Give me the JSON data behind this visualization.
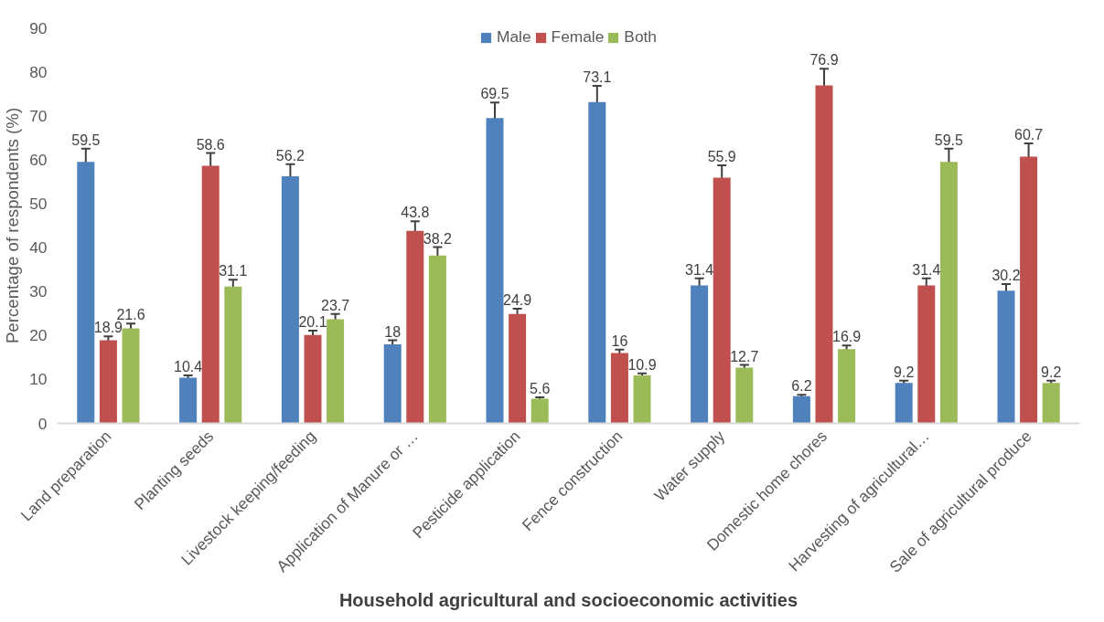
{
  "chart_data": {
    "type": "bar",
    "xlabel": "Household agricultural and socioeconomic activities",
    "ylabel": "Percentage of respondents (%)",
    "categories": [
      "Land preparation",
      "Planting seeds",
      "Livestock keeping/feeding",
      "Application of Manure or …",
      "Pesticide application",
      "Fence construction",
      "Water supply",
      "Domestic home chores",
      "Harvesting of agricultural…",
      "Sale of agricultural produce"
    ],
    "series": [
      {
        "name": "Male",
        "color": "#4f81bd",
        "values": [
          59.5,
          10.4,
          56.2,
          18,
          69.5,
          73.1,
          31.4,
          6.2,
          9.2,
          30.2
        ],
        "errors": [
          3.0,
          0.5,
          2.8,
          0.9,
          3.5,
          3.7,
          1.6,
          0.3,
          0.5,
          1.5
        ]
      },
      {
        "name": "Female",
        "color": "#c0504d",
        "values": [
          18.9,
          58.6,
          20.1,
          43.8,
          24.9,
          16,
          55.9,
          76.9,
          31.4,
          60.7
        ],
        "errors": [
          0.9,
          2.9,
          1.0,
          2.2,
          1.2,
          0.8,
          2.8,
          3.8,
          1.6,
          3.0
        ]
      },
      {
        "name": "Both",
        "color": "#9bbb59",
        "values": [
          21.6,
          31.1,
          23.7,
          38.2,
          5.6,
          10.9,
          12.7,
          16.9,
          59.5,
          9.2
        ],
        "errors": [
          1.1,
          1.6,
          1.2,
          1.9,
          0.3,
          0.5,
          0.6,
          0.8,
          3.0,
          0.5
        ]
      }
    ],
    "ylim": [
      0,
      90
    ],
    "yticks": [
      0,
      10,
      20,
      30,
      40,
      50,
      60,
      70,
      80,
      90
    ],
    "grid": false,
    "legend": "top",
    "data_labels": true
  }
}
